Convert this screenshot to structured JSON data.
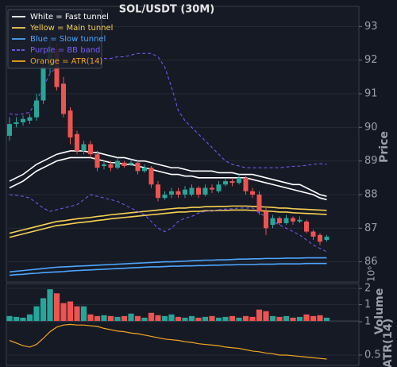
{
  "chart_data": [
    {
      "type": "candlestick",
      "title": "SOL/USDT (30M)",
      "ylabel": "Price",
      "open": [
        89.75,
        90.1,
        90.15,
        90.2,
        90.3,
        90.8,
        91.8,
        92.3,
        91.3,
        90.5,
        89.8,
        89.3,
        89.5,
        89.2,
        88.85,
        88.9,
        88.8,
        88.95,
        88.9,
        88.95,
        88.7,
        88.8,
        88.3,
        87.9,
        88.0,
        88.1,
        88.0,
        88.0,
        88.2,
        88.0,
        88.2,
        88.1,
        88.3,
        88.4,
        88.35,
        88.5,
        88.1,
        88.0,
        87.5,
        87.1,
        87.3,
        87.15,
        87.3,
        87.2,
        87.2,
        86.9,
        86.8,
        86.65
      ],
      "high": [
        90.3,
        90.3,
        90.35,
        90.4,
        91.0,
        92.0,
        92.6,
        92.5,
        91.5,
        90.6,
        89.9,
        89.6,
        89.6,
        89.3,
        89.0,
        89.0,
        89.1,
        89.0,
        89.05,
        89.0,
        88.9,
        88.85,
        88.4,
        88.1,
        88.2,
        88.2,
        88.25,
        88.3,
        88.25,
        88.3,
        88.3,
        88.4,
        88.5,
        88.5,
        88.6,
        88.55,
        88.2,
        88.1,
        87.6,
        87.4,
        87.35,
        87.4,
        87.35,
        87.35,
        87.25,
        86.95,
        86.85,
        86.8
      ],
      "low": [
        89.6,
        90.0,
        90.05,
        90.1,
        90.2,
        90.7,
        91.6,
        91.1,
        90.3,
        89.5,
        89.2,
        89.2,
        89.1,
        88.7,
        88.75,
        88.7,
        88.75,
        88.8,
        88.85,
        88.6,
        88.65,
        88.2,
        87.8,
        87.85,
        87.9,
        87.9,
        87.9,
        87.95,
        87.9,
        87.95,
        88.05,
        88.05,
        88.25,
        88.25,
        88.3,
        88.0,
        87.9,
        87.4,
        86.8,
        87.0,
        87.1,
        87.1,
        87.1,
        87.15,
        86.85,
        86.65,
        86.5,
        86.6
      ],
      "close": [
        90.1,
        90.15,
        90.25,
        90.3,
        90.8,
        91.8,
        92.4,
        91.2,
        90.4,
        89.7,
        89.3,
        89.5,
        89.2,
        88.8,
        88.9,
        88.8,
        89.0,
        88.85,
        88.95,
        88.7,
        88.8,
        88.3,
        87.9,
        88.0,
        88.1,
        88.0,
        88.15,
        88.2,
        88.0,
        88.2,
        88.15,
        88.3,
        88.4,
        88.35,
        88.5,
        88.1,
        88.0,
        87.5,
        87.0,
        87.3,
        87.15,
        87.3,
        87.2,
        87.25,
        86.9,
        86.75,
        86.6,
        86.75
      ],
      "up_color": "#26a69a",
      "down_color": "#ef5350",
      "lines": [
        {
          "name": "White = Fast tunnel",
          "color": "#ffffff",
          "dash": false,
          "upper": [
            88.4,
            88.5,
            88.6,
            88.75,
            88.9,
            89.0,
            89.1,
            89.2,
            89.25,
            89.3,
            89.3,
            89.3,
            89.25,
            89.25,
            89.2,
            89.15,
            89.1,
            89.1,
            89.05,
            89.0,
            89.0,
            88.95,
            88.9,
            88.85,
            88.8,
            88.8,
            88.75,
            88.7,
            88.7,
            88.7,
            88.7,
            88.65,
            88.65,
            88.65,
            88.6,
            88.6,
            88.6,
            88.55,
            88.5,
            88.45,
            88.4,
            88.35,
            88.3,
            88.3,
            88.2,
            88.1,
            88.0,
            87.95
          ],
          "lower": [
            88.2,
            88.3,
            88.4,
            88.55,
            88.7,
            88.8,
            88.9,
            89.0,
            89.05,
            89.1,
            89.1,
            89.1,
            89.1,
            89.05,
            89.0,
            88.95,
            88.95,
            88.9,
            88.9,
            88.85,
            88.8,
            88.75,
            88.7,
            88.65,
            88.6,
            88.6,
            88.55,
            88.55,
            88.5,
            88.5,
            88.5,
            88.5,
            88.5,
            88.5,
            88.5,
            88.5,
            88.45,
            88.4,
            88.35,
            88.3,
            88.25,
            88.2,
            88.15,
            88.1,
            88.05,
            88.0,
            87.9,
            87.85
          ]
        },
        {
          "name": "Yellow = Main tunnel",
          "color": "#f7d154",
          "dash": false,
          "upper": [
            86.85,
            86.9,
            86.95,
            87.0,
            87.05,
            87.1,
            87.15,
            87.2,
            87.22,
            87.25,
            87.28,
            87.3,
            87.32,
            87.35,
            87.37,
            87.4,
            87.42,
            87.44,
            87.46,
            87.48,
            87.5,
            87.52,
            87.54,
            87.56,
            87.58,
            87.6,
            87.6,
            87.62,
            87.62,
            87.64,
            87.64,
            87.65,
            87.65,
            87.66,
            87.66,
            87.66,
            87.65,
            87.64,
            87.63,
            87.62,
            87.6,
            87.6,
            87.58,
            87.57,
            87.56,
            87.55,
            87.54,
            87.53
          ],
          "lower": [
            86.73,
            86.78,
            86.83,
            86.88,
            86.93,
            86.98,
            87.03,
            87.08,
            87.1,
            87.13,
            87.16,
            87.18,
            87.2,
            87.23,
            87.25,
            87.28,
            87.3,
            87.32,
            87.34,
            87.36,
            87.38,
            87.4,
            87.42,
            87.44,
            87.46,
            87.48,
            87.48,
            87.5,
            87.5,
            87.52,
            87.52,
            87.53,
            87.53,
            87.54,
            87.54,
            87.54,
            87.53,
            87.52,
            87.51,
            87.5,
            87.48,
            87.48,
            87.46,
            87.45,
            87.44,
            87.43,
            87.42,
            87.41
          ]
        },
        {
          "name": "Blue = Slow tunnel",
          "color": "#4da6ff",
          "dash": false,
          "upper": [
            85.7,
            85.72,
            85.74,
            85.76,
            85.78,
            85.8,
            85.82,
            85.84,
            85.85,
            85.86,
            85.87,
            85.88,
            85.89,
            85.9,
            85.91,
            85.92,
            85.93,
            85.94,
            85.95,
            85.96,
            85.97,
            85.98,
            85.99,
            86.0,
            86.0,
            86.01,
            86.02,
            86.03,
            86.04,
            86.05,
            86.05,
            86.06,
            86.06,
            86.07,
            86.08,
            86.08,
            86.09,
            86.09,
            86.1,
            86.1,
            86.1,
            86.11,
            86.11,
            86.11,
            86.12,
            86.12,
            86.12,
            86.12
          ],
          "lower": [
            85.6,
            85.62,
            85.63,
            85.65,
            85.66,
            85.68,
            85.69,
            85.7,
            85.71,
            85.73,
            85.74,
            85.75,
            85.76,
            85.77,
            85.78,
            85.79,
            85.8,
            85.81,
            85.82,
            85.83,
            85.84,
            85.85,
            85.85,
            85.86,
            85.87,
            85.87,
            85.88,
            85.88,
            85.89,
            85.89,
            85.9,
            85.9,
            85.91,
            85.91,
            85.92,
            85.92,
            85.92,
            85.93,
            85.93,
            85.93,
            85.94,
            85.94,
            85.94,
            85.94,
            85.95,
            85.95,
            85.95,
            85.95
          ]
        },
        {
          "name": "Purple = BB band",
          "color": "#7b5cff",
          "dash": true,
          "upper": [
            90.4,
            90.38,
            90.4,
            90.45,
            90.8,
            91.2,
            91.6,
            91.8,
            91.9,
            91.95,
            91.95,
            92.0,
            92.0,
            92.0,
            92.05,
            92.05,
            92.1,
            92.1,
            92.15,
            92.2,
            92.2,
            92.2,
            92.1,
            91.8,
            91.2,
            90.5,
            90.2,
            90.0,
            89.8,
            89.6,
            89.4,
            89.2,
            89.0,
            88.9,
            88.85,
            88.8,
            88.8,
            88.8,
            88.8,
            88.8,
            88.8,
            88.82,
            88.84,
            88.85,
            88.87,
            88.9,
            88.92,
            88.9
          ],
          "lower": [
            88.0,
            87.98,
            87.95,
            87.9,
            87.75,
            87.6,
            87.5,
            87.55,
            87.6,
            87.65,
            87.7,
            87.85,
            88.0,
            87.95,
            87.9,
            87.85,
            87.8,
            87.7,
            87.6,
            87.5,
            87.4,
            87.2,
            87.0,
            86.9,
            87.0,
            87.2,
            87.3,
            87.35,
            87.45,
            87.5,
            87.52,
            87.55,
            87.57,
            87.58,
            87.6,
            87.6,
            87.6,
            87.45,
            87.35,
            87.2,
            87.1,
            87.0,
            86.9,
            86.8,
            86.65,
            86.5,
            86.4,
            86.3
          ]
        }
      ],
      "ylim": [
        85.4,
        93.6
      ],
      "yticks": [
        86,
        87,
        88,
        89,
        90,
        91,
        92,
        93
      ],
      "grid": true,
      "legend": "upper left"
    },
    {
      "type": "bar",
      "ylabel": "Volume",
      "offset_text": "10⁶",
      "values": [
        0.3,
        0.25,
        0.2,
        0.4,
        0.9,
        1.4,
        1.95,
        1.7,
        1.1,
        1.2,
        0.9,
        0.9,
        0.4,
        0.3,
        0.35,
        0.3,
        0.25,
        0.3,
        0.45,
        0.3,
        0.2,
        0.5,
        0.35,
        0.3,
        0.4,
        0.25,
        0.2,
        0.3,
        0.2,
        0.25,
        0.3,
        0.2,
        0.25,
        0.3,
        0.2,
        0.3,
        0.25,
        0.7,
        0.6,
        0.3,
        0.25,
        0.3,
        0.2,
        0.25,
        0.4,
        0.3,
        0.35,
        0.2
      ],
      "ylim": [
        0,
        2.3
      ],
      "yticks": [
        1,
        2
      ],
      "grid": true
    },
    {
      "type": "line",
      "ylabel": "ATR(14)",
      "series": [
        {
          "name": "Orange = ATR(14)",
          "color": "#f5a623",
          "values": [
            0.72,
            0.68,
            0.64,
            0.62,
            0.66,
            0.75,
            0.85,
            0.92,
            0.95,
            0.96,
            0.95,
            0.95,
            0.94,
            0.93,
            0.9,
            0.88,
            0.86,
            0.85,
            0.83,
            0.82,
            0.8,
            0.78,
            0.76,
            0.74,
            0.73,
            0.72,
            0.7,
            0.69,
            0.67,
            0.66,
            0.65,
            0.64,
            0.62,
            0.61,
            0.6,
            0.58,
            0.56,
            0.55,
            0.53,
            0.52,
            0.5,
            0.5,
            0.49,
            0.48,
            0.47,
            0.46,
            0.45,
            0.44
          ]
        }
      ],
      "ylim": [
        0.345,
        1.0
      ],
      "yticks": [
        0.5,
        1
      ],
      "grid": true
    }
  ]
}
